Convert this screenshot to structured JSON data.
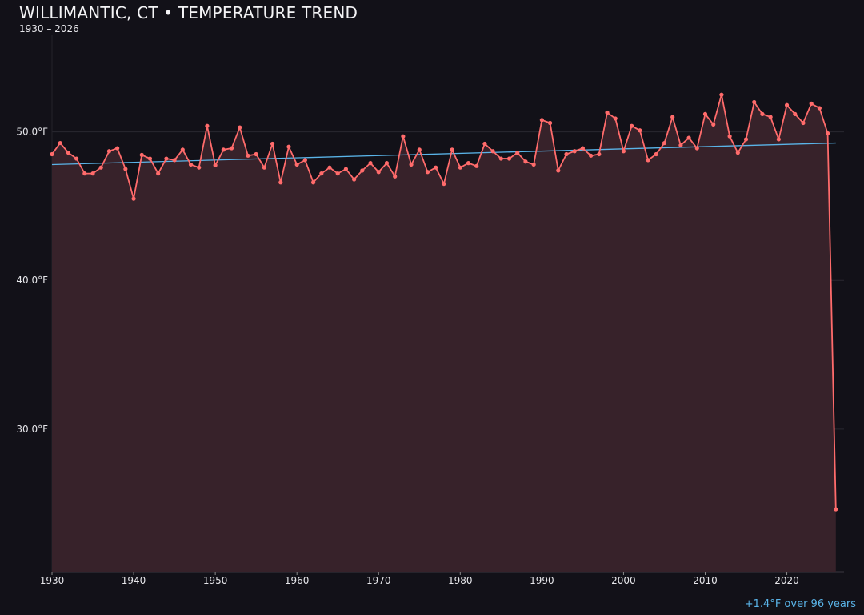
{
  "chart_data": {
    "type": "line",
    "title": "WILLIMANTIC, CT • TEMPERATURE TREND",
    "subtitle": "1930 – 2026",
    "annotation": "+1.4°F over 96 years",
    "xlabel": "",
    "ylabel": "",
    "xlim": [
      1930,
      2027
    ],
    "ylim": [
      20.4,
      56.5
    ],
    "x_ticks": [
      1930,
      1940,
      1950,
      1960,
      1970,
      1980,
      1990,
      2000,
      2010,
      2020
    ],
    "x_tick_labels": [
      "1930",
      "1940",
      "1950",
      "1960",
      "1970",
      "1980",
      "1990",
      "2000",
      "2010",
      "2020"
    ],
    "y_ticks": [
      30,
      40,
      50
    ],
    "y_tick_labels": [
      "30.0°F",
      "40.0°F",
      "50.0°F"
    ],
    "grid": "horizontal",
    "colors": {
      "background": "#121118",
      "line": "#ff6b6b",
      "area": "#37222a",
      "trend": "#5ab4e8",
      "grid": "#2a2830"
    },
    "series": [
      {
        "x": [
          1930,
          1931,
          1932,
          1933,
          1934,
          1935,
          1936,
          1937,
          1938,
          1939,
          1940,
          1941,
          1942,
          1943,
          1944,
          1945,
          1946,
          1947,
          1948,
          1949,
          1950,
          1951,
          1952,
          1953,
          1954,
          1955,
          1956,
          1957,
          1958,
          1959,
          1960,
          1961,
          1962,
          1963,
          1964,
          1965,
          1966,
          1967,
          1968,
          1969,
          1970,
          1971,
          1972,
          1973,
          1974,
          1975,
          1976,
          1977,
          1978,
          1979,
          1980,
          1981,
          1982,
          1983,
          1984,
          1985,
          1986,
          1987,
          1988,
          1989,
          1990,
          1991,
          1992,
          1993,
          1994,
          1995,
          1996,
          1997,
          1998,
          1999,
          2000,
          2001,
          2002,
          2003,
          2004,
          2005,
          2006,
          2007,
          2008,
          2009,
          2010,
          2011,
          2012,
          2013,
          2014,
          2015,
          2016,
          2017,
          2018,
          2019,
          2020,
          2021,
          2022,
          2023,
          2024,
          2025,
          2026
        ],
        "values": [
          48.5,
          49.25,
          48.6,
          48.2,
          47.2,
          47.2,
          47.6,
          48.7,
          48.9,
          47.5,
          45.5,
          48.45,
          48.2,
          47.2,
          48.2,
          48.1,
          48.8,
          47.8,
          47.6,
          50.4,
          47.75,
          48.8,
          48.9,
          50.3,
          48.4,
          48.5,
          47.6,
          49.2,
          46.6,
          49.0,
          47.8,
          48.1,
          46.6,
          47.2,
          47.6,
          47.2,
          47.5,
          46.8,
          47.4,
          47.9,
          47.3,
          47.9,
          47.0,
          49.7,
          47.8,
          48.8,
          47.3,
          47.6,
          46.5,
          48.8,
          47.6,
          47.9,
          47.7,
          49.2,
          48.7,
          48.2,
          48.2,
          48.6,
          48.0,
          47.8,
          50.8,
          50.6,
          47.4,
          48.5,
          48.7,
          48.9,
          48.4,
          48.5,
          51.3,
          50.9,
          48.7,
          50.4,
          50.1,
          48.1,
          48.5,
          49.25,
          51.0,
          49.1,
          49.6,
          48.9,
          51.2,
          50.5,
          52.5,
          49.7,
          48.6,
          49.5,
          52.0,
          51.2,
          51.0,
          49.5,
          51.8,
          51.2,
          50.6,
          51.9,
          51.6,
          49.9,
          24.6
        ]
      }
    ],
    "trend": {
      "x": [
        1930,
        2026
      ],
      "values": [
        47.8,
        49.25
      ]
    }
  }
}
